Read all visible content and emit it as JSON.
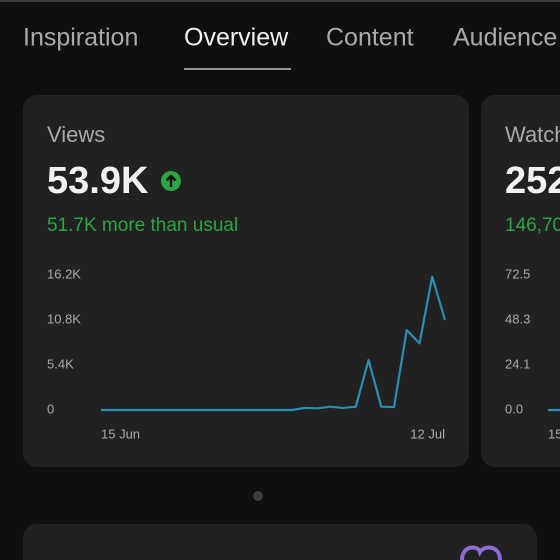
{
  "tabs": [
    "Inspiration",
    "Overview",
    "Content",
    "Audience"
  ],
  "selected_tab": 1,
  "cards": [
    {
      "label": "Views",
      "value": "53.9K",
      "comparison": "51.7K more than usual",
      "chart": {
        "type": "line",
        "color": "#2a8fb5",
        "categories": [
          "15 Jun",
          null,
          null,
          null,
          null,
          null,
          null,
          null,
          null,
          null,
          null,
          null,
          null,
          null,
          null,
          null,
          null,
          null,
          null,
          null,
          null,
          null,
          null,
          null,
          null,
          null,
          null,
          "12 Jul"
        ],
        "values": [
          0,
          0,
          0,
          0,
          0,
          0,
          0,
          0,
          0,
          0,
          0,
          0,
          0,
          0,
          0,
          0,
          250,
          200,
          400,
          250,
          400,
          6000,
          400,
          350,
          9600,
          8000,
          16000,
          10800
        ],
        "ylim": [
          0,
          16200
        ],
        "yticks": [
          {
            "value": 16200,
            "label": "16.2K"
          },
          {
            "value": 10800,
            "label": "10.8K"
          },
          {
            "value": 5400,
            "label": "5.4K"
          },
          0
        ]
      }
    },
    {
      "label": "Watch",
      "value": "252",
      "comparison": "146,70",
      "chart": {
        "type": "line",
        "color": "#2a8fb5",
        "categories": [
          "15",
          null
        ],
        "values": [
          0,
          0
        ],
        "ylim": [
          0,
          72.5
        ],
        "yticks": [
          72.5,
          48.3,
          24.1,
          {
            "value": 0,
            "label": "0.0"
          }
        ]
      }
    }
  ]
}
